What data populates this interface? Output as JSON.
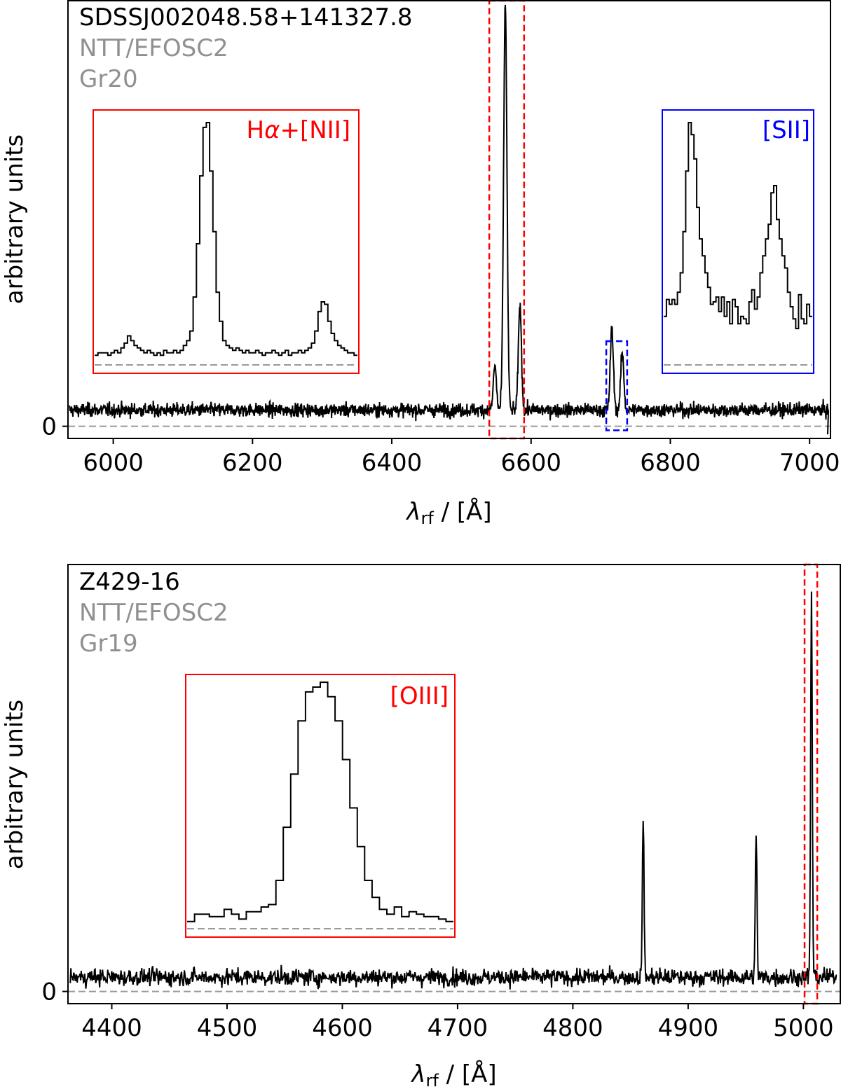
{
  "chart_data": [
    {
      "type": "line",
      "object_name": "SDSSJ002048.58+141327.8",
      "instrument": "NTT/EFOSC2",
      "grism": "Gr20",
      "xlabel_symbol": "λ",
      "xlabel_subscript": "rf",
      "xlabel_unit": " / [Å]",
      "ylabel": "arbitrary units",
      "xlim": [
        5935,
        7030
      ],
      "ylim": [
        -0.03,
        1.05
      ],
      "x_ticks": [
        6000,
        6200,
        6400,
        6600,
        6800,
        7000
      ],
      "y_ticks": [
        0
      ],
      "zero_line": true,
      "continuum_level": 0.04,
      "noise_level": 0.012,
      "emission_lines": [
        {
          "center": 6548,
          "peak": 0.11,
          "sigma": 2.2
        },
        {
          "center": 6563,
          "peak": 1.0,
          "sigma": 2.4
        },
        {
          "center": 6584,
          "peak": 0.26,
          "sigma": 2.2
        },
        {
          "center": 6716,
          "peak": 0.2,
          "sigma": 2.2
        },
        {
          "center": 6731,
          "peak": 0.14,
          "sigma": 2.2
        }
      ],
      "highlight_regions": [
        {
          "x_range": [
            6540,
            6590
          ],
          "y_range": [
            -0.03,
            1.05
          ],
          "color": "#ff0000"
        },
        {
          "x_range": [
            6708,
            6738
          ],
          "y_range": [
            -0.01,
            0.21
          ],
          "color": "#0000ff"
        }
      ],
      "insets": [
        {
          "label": "Hα+[NII]",
          "label_parts": [
            "H",
            "α",
            "+[NII]"
          ],
          "color": "#ff0000",
          "x_range": [
            6540,
            6590
          ],
          "profile": [
            0.04,
            0.05,
            0.05,
            0.05,
            0.04,
            0.05,
            0.06,
            0.05,
            0.07,
            0.09,
            0.12,
            0.1,
            0.08,
            0.07,
            0.06,
            0.05,
            0.06,
            0.05,
            0.04,
            0.05,
            0.04,
            0.06,
            0.05,
            0.05,
            0.06,
            0.05,
            0.06,
            0.08,
            0.1,
            0.14,
            0.28,
            0.5,
            0.78,
            0.98,
            1.0,
            0.8,
            0.55,
            0.3,
            0.18,
            0.1,
            0.08,
            0.07,
            0.06,
            0.07,
            0.06,
            0.05,
            0.06,
            0.05,
            0.05,
            0.06,
            0.05,
            0.04,
            0.05,
            0.05,
            0.06,
            0.05,
            0.04,
            0.05,
            0.06,
            0.04,
            0.05,
            0.05,
            0.06,
            0.05,
            0.06,
            0.07,
            0.09,
            0.14,
            0.22,
            0.26,
            0.25,
            0.18,
            0.13,
            0.1,
            0.08,
            0.07,
            0.06,
            0.05,
            0.05,
            0.04
          ],
          "zero_line": true
        },
        {
          "label": "[SII]",
          "label_parts": [
            "[SII]"
          ],
          "color": "#0000ff",
          "x_range": [
            6708,
            6738
          ],
          "profile": [
            0.2,
            0.27,
            0.25,
            0.27,
            0.25,
            0.3,
            0.38,
            0.55,
            0.8,
            1.0,
            0.95,
            0.85,
            0.65,
            0.52,
            0.45,
            0.38,
            0.32,
            0.25,
            0.26,
            0.28,
            0.22,
            0.28,
            0.2,
            0.26,
            0.17,
            0.27,
            0.24,
            0.17,
            0.2,
            0.19,
            0.17,
            0.26,
            0.31,
            0.23,
            0.28,
            0.38,
            0.45,
            0.52,
            0.58,
            0.71,
            0.74,
            0.6,
            0.52,
            0.45,
            0.4,
            0.3,
            0.24,
            0.19,
            0.15,
            0.29,
            0.19,
            0.17,
            0.25,
            0.2
          ],
          "zero_line": true
        }
      ]
    },
    {
      "type": "line",
      "object_name": "Z429-16",
      "instrument": "NTT/EFOSC2",
      "grism": "Gr19",
      "xlabel_symbol": "λ",
      "xlabel_subscript": "rf",
      "xlabel_unit": " / [Å]",
      "ylabel": "arbitrary units",
      "xlim": [
        4362,
        5032
      ],
      "ylim": [
        -0.03,
        1.05
      ],
      "x_ticks": [
        4400,
        4500,
        4600,
        4700,
        4800,
        4900,
        5000
      ],
      "y_ticks": [
        0
      ],
      "zero_line": true,
      "continuum_level": 0.035,
      "noise_level": 0.015,
      "emission_lines": [
        {
          "center": 4861,
          "peak": 0.4,
          "sigma": 0.7
        },
        {
          "center": 4959,
          "peak": 0.36,
          "sigma": 0.7
        },
        {
          "center": 5007,
          "peak": 0.96,
          "sigma": 0.7
        }
      ],
      "highlight_regions": [
        {
          "x_range": [
            5001,
            5012
          ],
          "y_range": [
            -0.03,
            1.05
          ],
          "color": "#ff0000"
        }
      ],
      "insets": [
        {
          "label": "[OIII]",
          "label_parts": [
            "[OIII]"
          ],
          "color": "#ff0000",
          "x_range": [
            5001,
            5012
          ],
          "profile": [
            0.03,
            0.06,
            0.06,
            0.05,
            0.05,
            0.08,
            0.06,
            0.04,
            0.07,
            0.07,
            0.09,
            0.1,
            0.2,
            0.42,
            0.64,
            0.86,
            0.98,
            1.0,
            1.02,
            0.96,
            0.86,
            0.7,
            0.5,
            0.34,
            0.2,
            0.13,
            0.08,
            0.06,
            0.09,
            0.05,
            0.07,
            0.06,
            0.05,
            0.05,
            0.04,
            0.03
          ],
          "zero_line": true
        }
      ]
    }
  ]
}
